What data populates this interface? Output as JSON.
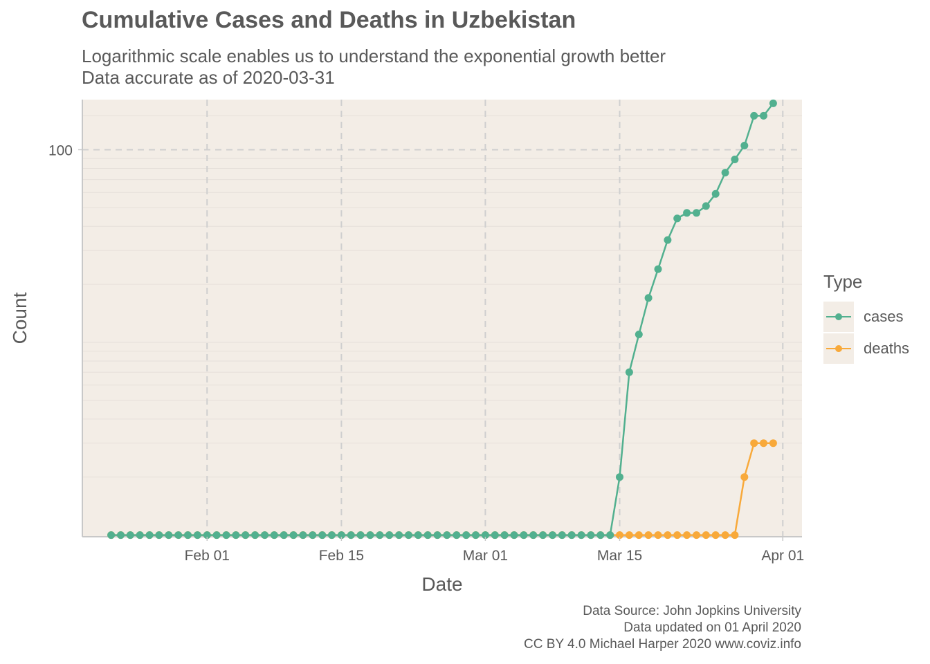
{
  "title": "Cumulative Cases and Deaths in Uzbekistan",
  "subtitle_lines": [
    "Logarithmic scale enables us to understand the exponential growth better",
    "Data accurate as of 2020-03-31"
  ],
  "caption_lines": [
    "Data Source: John Jopkins University",
    "Data updated on 01 April 2020",
    "CC BY 4.0 Michael Harper 2020 www.coviz.info"
  ],
  "colors": {
    "cases": "#52b08f",
    "deaths": "#f8a93a",
    "panel": "#f3ede6"
  },
  "chart_data": {
    "type": "line",
    "xlabel": "Date",
    "ylabel": "Count",
    "y_scale": "log10",
    "x_tick_labels": [
      "Feb 01",
      "Feb 15",
      "Mar 01",
      "Mar 15",
      "Apr 01"
    ],
    "x_ticks": [
      "2020-02-01",
      "2020-02-15",
      "2020-03-01",
      "2020-03-15",
      "2020-04-01"
    ],
    "y_tick_labels": [
      "100"
    ],
    "y_ticks": [
      100
    ],
    "x_range": [
      "2020-01-19",
      "2020-04-03"
    ],
    "y_range": [
      0.98,
      182
    ],
    "grid": true,
    "legend_title": "Type",
    "legend_position": "right",
    "first_date": "2020-01-22",
    "series": [
      {
        "name": "cases",
        "color": "#52b08f",
        "values": [
          0,
          0,
          0,
          0,
          0,
          0,
          0,
          0,
          0,
          0,
          0,
          0,
          0,
          0,
          0,
          0,
          0,
          0,
          0,
          0,
          0,
          0,
          0,
          0,
          0,
          0,
          0,
          0,
          0,
          0,
          0,
          0,
          0,
          0,
          0,
          0,
          0,
          0,
          0,
          0,
          0,
          0,
          0,
          0,
          0,
          0,
          0,
          0,
          0,
          0,
          0,
          0,
          0,
          1,
          6,
          10,
          16,
          23,
          33,
          43,
          46,
          46,
          50,
          58,
          75,
          88,
          104,
          149,
          149,
          173
        ]
      },
      {
        "name": "deaths",
        "color": "#f8a93a",
        "values": [
          0,
          0,
          0,
          0,
          0,
          0,
          0,
          0,
          0,
          0,
          0,
          0,
          0,
          0,
          0,
          0,
          0,
          0,
          0,
          0,
          0,
          0,
          0,
          0,
          0,
          0,
          0,
          0,
          0,
          0,
          0,
          0,
          0,
          0,
          0,
          0,
          0,
          0,
          0,
          0,
          0,
          0,
          0,
          0,
          0,
          0,
          0,
          0,
          0,
          0,
          0,
          0,
          0,
          0,
          0,
          0,
          0,
          0,
          0,
          0,
          0,
          0,
          0,
          0,
          0,
          0,
          1,
          2,
          2,
          2
        ]
      }
    ]
  }
}
